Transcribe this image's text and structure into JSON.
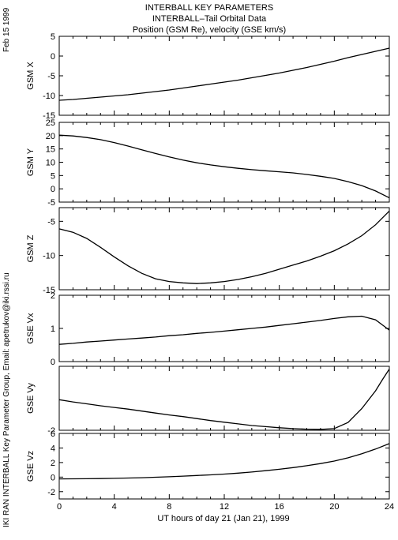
{
  "header": {
    "line1": "INTERBALL KEY PARAMETERS",
    "line2": "INTERBALL–Tail Orbital Data",
    "line3": "Position (GSM Re), velocity (GSE km/s)"
  },
  "side": {
    "date": "Feb 15 1999",
    "credit": "IKI RAN INTERBALL Key Parameter Group, Email: apetrukov@iki.rssi.ru"
  },
  "chart_data": {
    "type": "line",
    "xlabel": "UT hours of day  21 (Jan 21), 1999",
    "xlim": [
      0,
      24
    ],
    "xticks": [
      "0",
      "4",
      "8",
      "12",
      "16",
      "20",
      "24"
    ],
    "panels": [
      {
        "ylabel": "GSM X",
        "ylim": [
          -15,
          5
        ],
        "yticks": [
          5,
          0,
          -5,
          -10,
          -15
        ],
        "x": [
          0,
          1,
          2,
          3,
          4,
          5,
          6,
          7,
          8,
          9,
          10,
          11,
          12,
          13,
          14,
          15,
          16,
          17,
          18,
          19,
          20,
          21,
          22,
          23,
          24
        ],
        "y": [
          -11.2,
          -11.0,
          -10.7,
          -10.4,
          -10.1,
          -9.8,
          -9.4,
          -9.0,
          -8.6,
          -8.1,
          -7.6,
          -7.1,
          -6.6,
          -6.1,
          -5.5,
          -4.9,
          -4.3,
          -3.6,
          -2.9,
          -2.1,
          -1.3,
          -0.4,
          0.4,
          1.2,
          2.0
        ]
      },
      {
        "ylabel": "GSM Y",
        "ylim": [
          -5,
          25
        ],
        "yticks": [
          25,
          20,
          15,
          10,
          5,
          0,
          -5
        ],
        "x": [
          0,
          1,
          2,
          3,
          4,
          5,
          6,
          7,
          8,
          9,
          10,
          11,
          12,
          13,
          14,
          15,
          16,
          17,
          18,
          19,
          20,
          21,
          22,
          23,
          24
        ],
        "y": [
          20.2,
          19.9,
          19.3,
          18.5,
          17.4,
          16.1,
          14.7,
          13.3,
          12.0,
          10.8,
          9.8,
          9.0,
          8.3,
          7.7,
          7.2,
          6.8,
          6.4,
          6.0,
          5.4,
          4.7,
          3.9,
          2.7,
          1.2,
          -0.8,
          -3.4
        ]
      },
      {
        "ylabel": "GSM Z",
        "ylim": [
          -15,
          -3
        ],
        "yticks": [
          -5,
          -10,
          -15
        ],
        "x": [
          0,
          1,
          2,
          3,
          4,
          5,
          6,
          7,
          8,
          9,
          10,
          11,
          12,
          13,
          14,
          15,
          16,
          17,
          18,
          19,
          20,
          21,
          22,
          23,
          24
        ],
        "y": [
          -6.1,
          -6.6,
          -7.5,
          -8.8,
          -10.2,
          -11.5,
          -12.6,
          -13.4,
          -13.8,
          -14.0,
          -14.1,
          -14.0,
          -13.8,
          -13.5,
          -13.1,
          -12.6,
          -12.0,
          -11.4,
          -10.8,
          -10.1,
          -9.3,
          -8.3,
          -7.1,
          -5.5,
          -3.5
        ]
      },
      {
        "ylabel": "GSE Vx",
        "ylim": [
          0,
          2
        ],
        "yticks": [
          2,
          1,
          0
        ],
        "x": [
          0,
          1,
          2,
          3,
          4,
          5,
          6,
          7,
          8,
          9,
          10,
          11,
          12,
          13,
          14,
          15,
          16,
          17,
          18,
          19,
          20,
          21,
          22,
          23,
          24
        ],
        "y": [
          0.52,
          0.55,
          0.59,
          0.62,
          0.65,
          0.68,
          0.71,
          0.74,
          0.78,
          0.81,
          0.85,
          0.88,
          0.92,
          0.96,
          1.0,
          1.04,
          1.09,
          1.14,
          1.19,
          1.24,
          1.3,
          1.35,
          1.37,
          1.26,
          0.95
        ]
      },
      {
        "ylabel": "GSE Vy",
        "ylim": [
          -2.0,
          0.3
        ],
        "yticks": [
          -2
        ],
        "x": [
          0,
          1,
          2,
          3,
          4,
          5,
          6,
          7,
          8,
          9,
          10,
          11,
          12,
          13,
          14,
          15,
          16,
          17,
          18,
          19,
          20,
          21,
          22,
          23,
          23.5,
          24
        ],
        "y": [
          -0.9,
          -0.98,
          -1.05,
          -1.12,
          -1.18,
          -1.24,
          -1.31,
          -1.38,
          -1.45,
          -1.51,
          -1.58,
          -1.65,
          -1.71,
          -1.77,
          -1.83,
          -1.87,
          -1.91,
          -1.94,
          -1.96,
          -1.97,
          -1.94,
          -1.72,
          -1.22,
          -0.58,
          -0.18,
          0.2
        ]
      },
      {
        "ylabel": "GSE Vz",
        "ylim": [
          -3,
          6
        ],
        "yticks": [
          6,
          4,
          2,
          0,
          -2
        ],
        "x": [
          0,
          1,
          2,
          3,
          4,
          5,
          6,
          7,
          8,
          9,
          10,
          11,
          12,
          13,
          14,
          15,
          16,
          17,
          18,
          19,
          20,
          21,
          22,
          23,
          24
        ],
        "y": [
          -0.25,
          -0.24,
          -0.22,
          -0.2,
          -0.17,
          -0.13,
          -0.08,
          -0.02,
          0.05,
          0.13,
          0.22,
          0.31,
          0.42,
          0.55,
          0.7,
          0.88,
          1.08,
          1.3,
          1.56,
          1.86,
          2.2,
          2.65,
          3.2,
          3.85,
          4.6
        ]
      }
    ]
  }
}
